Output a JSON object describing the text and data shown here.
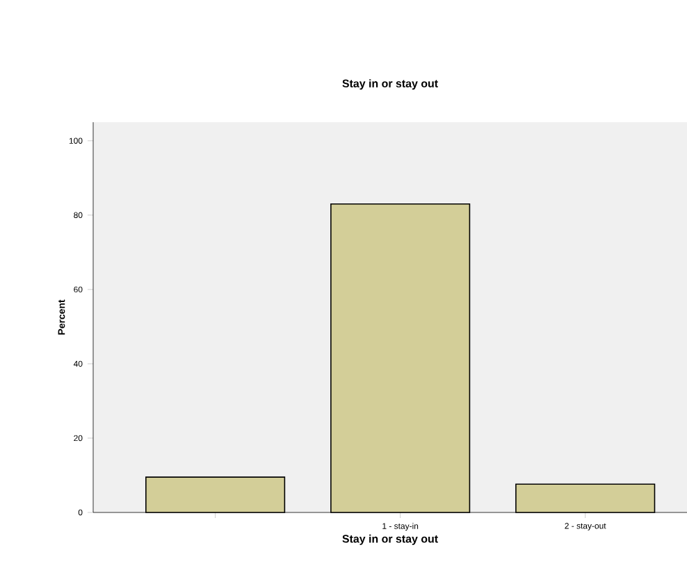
{
  "chart_data": {
    "type": "bar",
    "title": "Stay in or stay out",
    "xlabel": "Stay in or stay out",
    "ylabel": "Percent",
    "categories": [
      null,
      "1 - stay-in",
      "2 - stay-out"
    ],
    "values": [
      9.5,
      83,
      7.6
    ],
    "color": "#d3ce98",
    "ylim": [
      0,
      105
    ],
    "yticks": [
      0,
      20,
      40,
      60,
      80,
      100
    ],
    "grid": false
  }
}
